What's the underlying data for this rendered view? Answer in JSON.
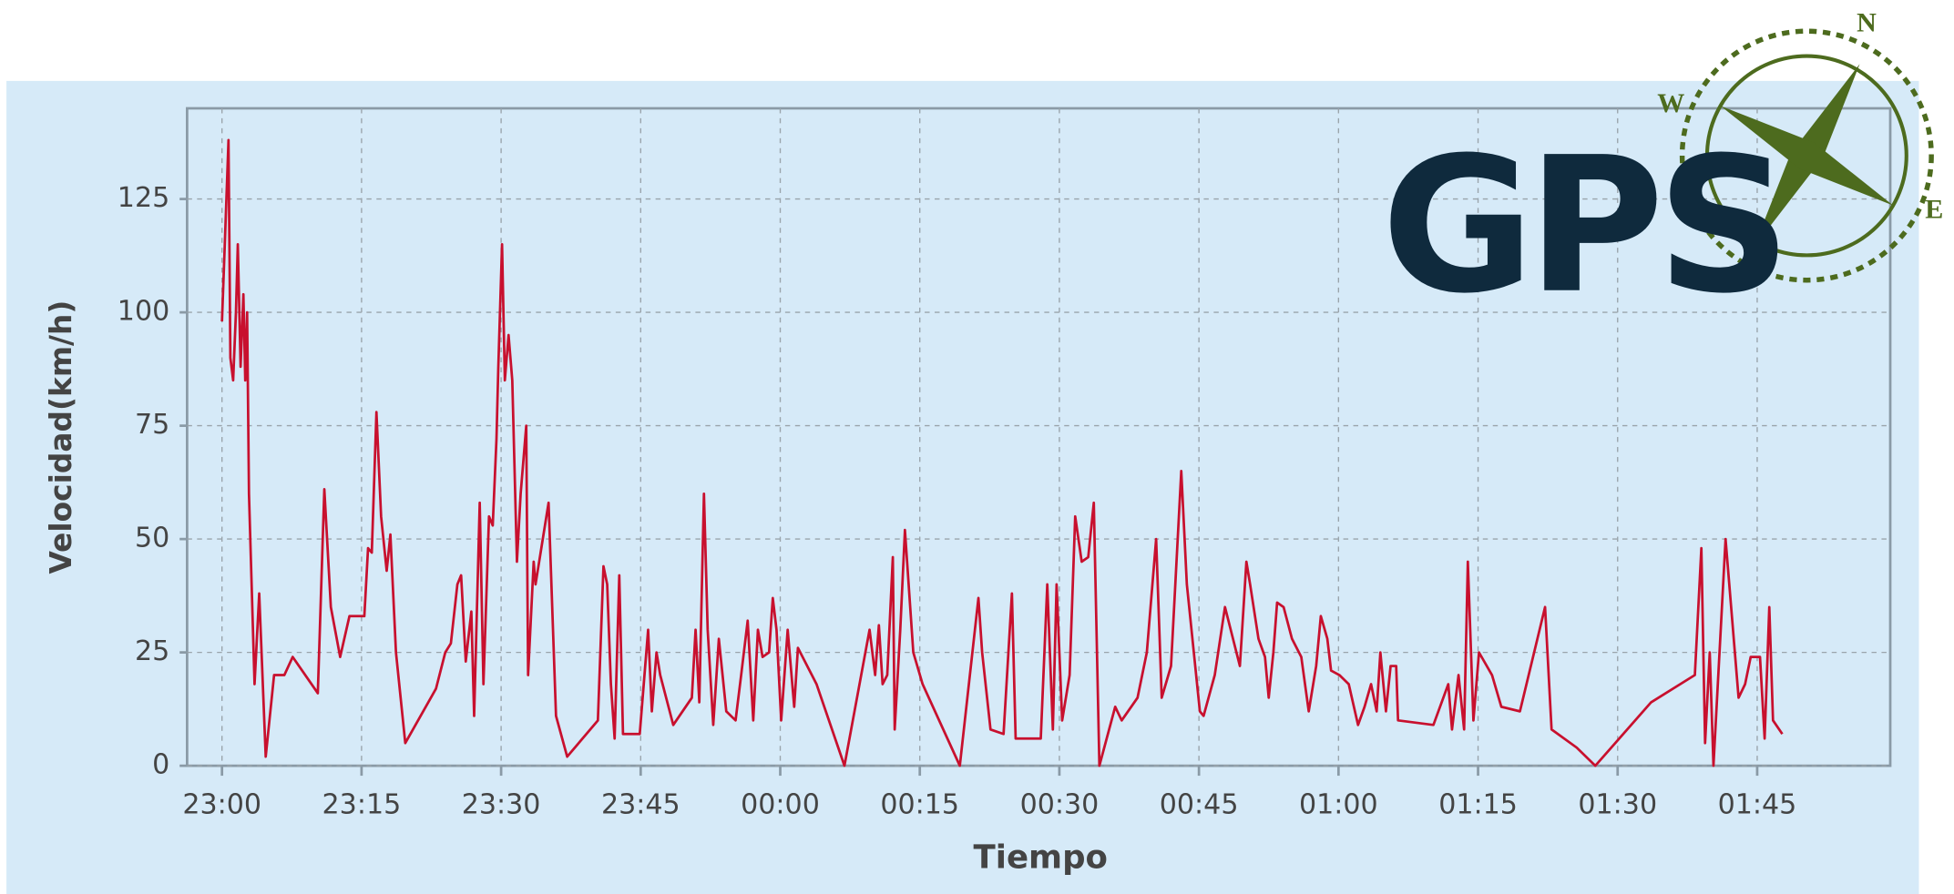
{
  "chart_data": {
    "type": "line",
    "xlabel": "Tiempo",
    "ylabel": "Velocidad(km/h)",
    "xlim": [
      -3.75,
      179.3
    ],
    "ylim": [
      0,
      145
    ],
    "xticks": [
      {
        "value": 0,
        "label": "23:00"
      },
      {
        "value": 15,
        "label": "23:15"
      },
      {
        "value": 30,
        "label": "23:30"
      },
      {
        "value": 45,
        "label": "23:45"
      },
      {
        "value": 60,
        "label": "00:00"
      },
      {
        "value": 75,
        "label": "00:15"
      },
      {
        "value": 90,
        "label": "00:30"
      },
      {
        "value": 105,
        "label": "00:45"
      },
      {
        "value": 120,
        "label": "01:00"
      },
      {
        "value": 135,
        "label": "01:15"
      },
      {
        "value": 150,
        "label": "01:30"
      },
      {
        "value": 165,
        "label": "01:45"
      }
    ],
    "yticks": [
      0,
      25,
      50,
      75,
      100,
      125
    ],
    "grid": true,
    "color": "#c8102e",
    "x": [
      0,
      0.3,
      0.7,
      0.9,
      1.2,
      1.5,
      1.7,
      2.0,
      2.3,
      2.5,
      2.7,
      2.9,
      3.5,
      4.0,
      4.7,
      5.6,
      6.7,
      7.6,
      10.3,
      11.0,
      11.7,
      12.7,
      13.7,
      15.3,
      15.7,
      16.1,
      16.6,
      17.1,
      17.7,
      18.1,
      18.7,
      19.7,
      23.0,
      24.0,
      24.6,
      25.3,
      25.7,
      26.2,
      26.8,
      27.1,
      27.7,
      28.1,
      28.7,
      29.1,
      29.5,
      29.7,
      30.1,
      30.4,
      30.8,
      31.2,
      31.7,
      32.1,
      32.7,
      32.9,
      33.5,
      33.7,
      35.1,
      35.9,
      37.1,
      40.4,
      41.0,
      41.4,
      41.8,
      42.2,
      42.7,
      43.1,
      44.9,
      45.8,
      46.2,
      46.7,
      47.1,
      48.5,
      50.5,
      50.9,
      51.3,
      51.8,
      52.2,
      52.8,
      53.4,
      54.2,
      55.2,
      55.8,
      56.5,
      57.1,
      57.6,
      58.1,
      58.8,
      59.2,
      59.6,
      60.1,
      60.8,
      61.5,
      61.9,
      63.9,
      66.9,
      69.6,
      70.2,
      70.6,
      71.0,
      71.5,
      72.1,
      72.3,
      72.9,
      73.4,
      74.3,
      75.3,
      79.3,
      81.3,
      81.7,
      82.6,
      84.0,
      84.9,
      85.3,
      88.0,
      88.7,
      89.3,
      89.7,
      90.3,
      91.1,
      91.7,
      92.4,
      93.1,
      93.7,
      94.3,
      96.0,
      96.7,
      98.4,
      99.4,
      100.4,
      101.0,
      102.0,
      103.1,
      103.7,
      105.1,
      105.5,
      106.7,
      107.8,
      109.4,
      110.1,
      110.5,
      111.4,
      112.1,
      112.5,
      113.0,
      113.4,
      114.1,
      115.0,
      116.0,
      116.8,
      117.6,
      118.1,
      118.8,
      119.2,
      120.1,
      121.1,
      122.1,
      122.8,
      123.5,
      124.1,
      124.5,
      125.1,
      125.6,
      126.2,
      126.4,
      130.2,
      131.8,
      132.2,
      132.9,
      133.5,
      133.9,
      134.5,
      135.1,
      136.5,
      137.5,
      139.5,
      142.2,
      142.9,
      145.6,
      147.6,
      153.6,
      158.3,
      159.0,
      159.4,
      159.9,
      160.3,
      161.6,
      163.0,
      163.7,
      164.3,
      165.3,
      165.8,
      166.3,
      166.7,
      167.7
    ],
    "values": [
      98,
      115,
      138,
      90,
      85,
      100,
      115,
      88,
      104,
      85,
      100,
      60,
      18,
      38,
      2,
      20,
      20,
      24,
      16,
      61,
      35,
      24,
      33,
      33,
      48,
      47,
      78,
      55,
      43,
      51,
      25,
      5,
      17,
      25,
      27,
      40,
      42,
      23,
      34,
      11,
      58,
      18,
      55,
      53,
      72,
      88,
      115,
      85,
      95,
      85,
      45,
      60,
      75,
      20,
      45,
      40,
      58,
      11,
      2,
      10,
      44,
      40,
      18,
      6,
      42,
      7,
      7,
      30,
      12,
      25,
      20,
      9,
      15,
      30,
      14,
      60,
      30,
      9,
      28,
      12,
      10,
      20,
      32,
      10,
      30,
      24,
      25,
      37,
      30,
      10,
      30,
      13,
      26,
      18,
      0,
      30,
      20,
      31,
      18,
      20,
      46,
      8,
      30,
      52,
      25,
      18,
      0,
      37,
      25,
      8,
      7,
      38,
      6,
      6,
      40,
      8,
      40,
      10,
      20,
      55,
      45,
      46,
      58,
      0,
      13,
      10,
      15,
      25,
      50,
      15,
      22,
      65,
      40,
      12,
      11,
      20,
      35,
      22,
      45,
      40,
      28,
      24,
      15,
      25,
      36,
      35,
      28,
      24,
      12,
      22,
      33,
      28,
      21,
      20,
      18,
      9,
      13,
      18,
      12,
      25,
      12,
      22,
      22,
      10,
      9,
      18,
      8,
      20,
      8,
      45,
      10,
      25,
      20,
      13,
      12,
      35,
      8,
      4,
      0,
      14,
      20,
      48,
      5,
      25,
      0,
      50,
      15,
      18,
      24,
      24,
      6,
      35,
      10,
      7
    ]
  },
  "logo": {
    "text": "GPS",
    "compass": [
      "N",
      "W",
      "E"
    ]
  }
}
